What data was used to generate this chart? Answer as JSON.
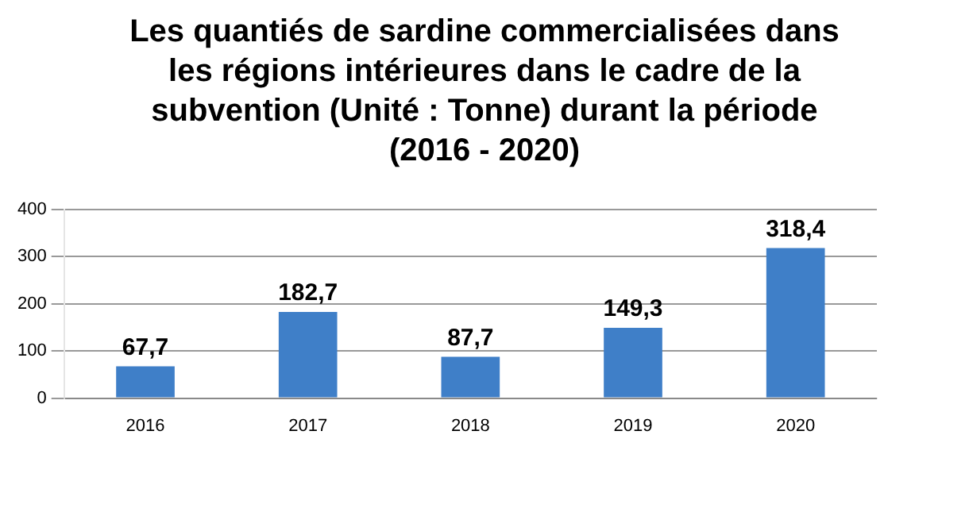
{
  "chart_data": {
    "type": "bar",
    "title": "Les quantiés de sardine commercialisées dans les régions intérieures dans le cadre de la subvention  (Unité : Tonne) durant la période (2016 - 2020)",
    "categories": [
      "2016",
      "2017",
      "2018",
      "2019",
      "2020"
    ],
    "values": [
      67.7,
      182.7,
      87.7,
      149.3,
      318.4
    ],
    "value_labels": [
      "67,7",
      "182,7",
      "87,7",
      "149,3",
      "318,4"
    ],
    "color": "#3f7fc8",
    "ylim": [
      0,
      400
    ],
    "yticks": [
      0,
      100,
      200,
      300,
      400
    ],
    "grid": "y"
  }
}
